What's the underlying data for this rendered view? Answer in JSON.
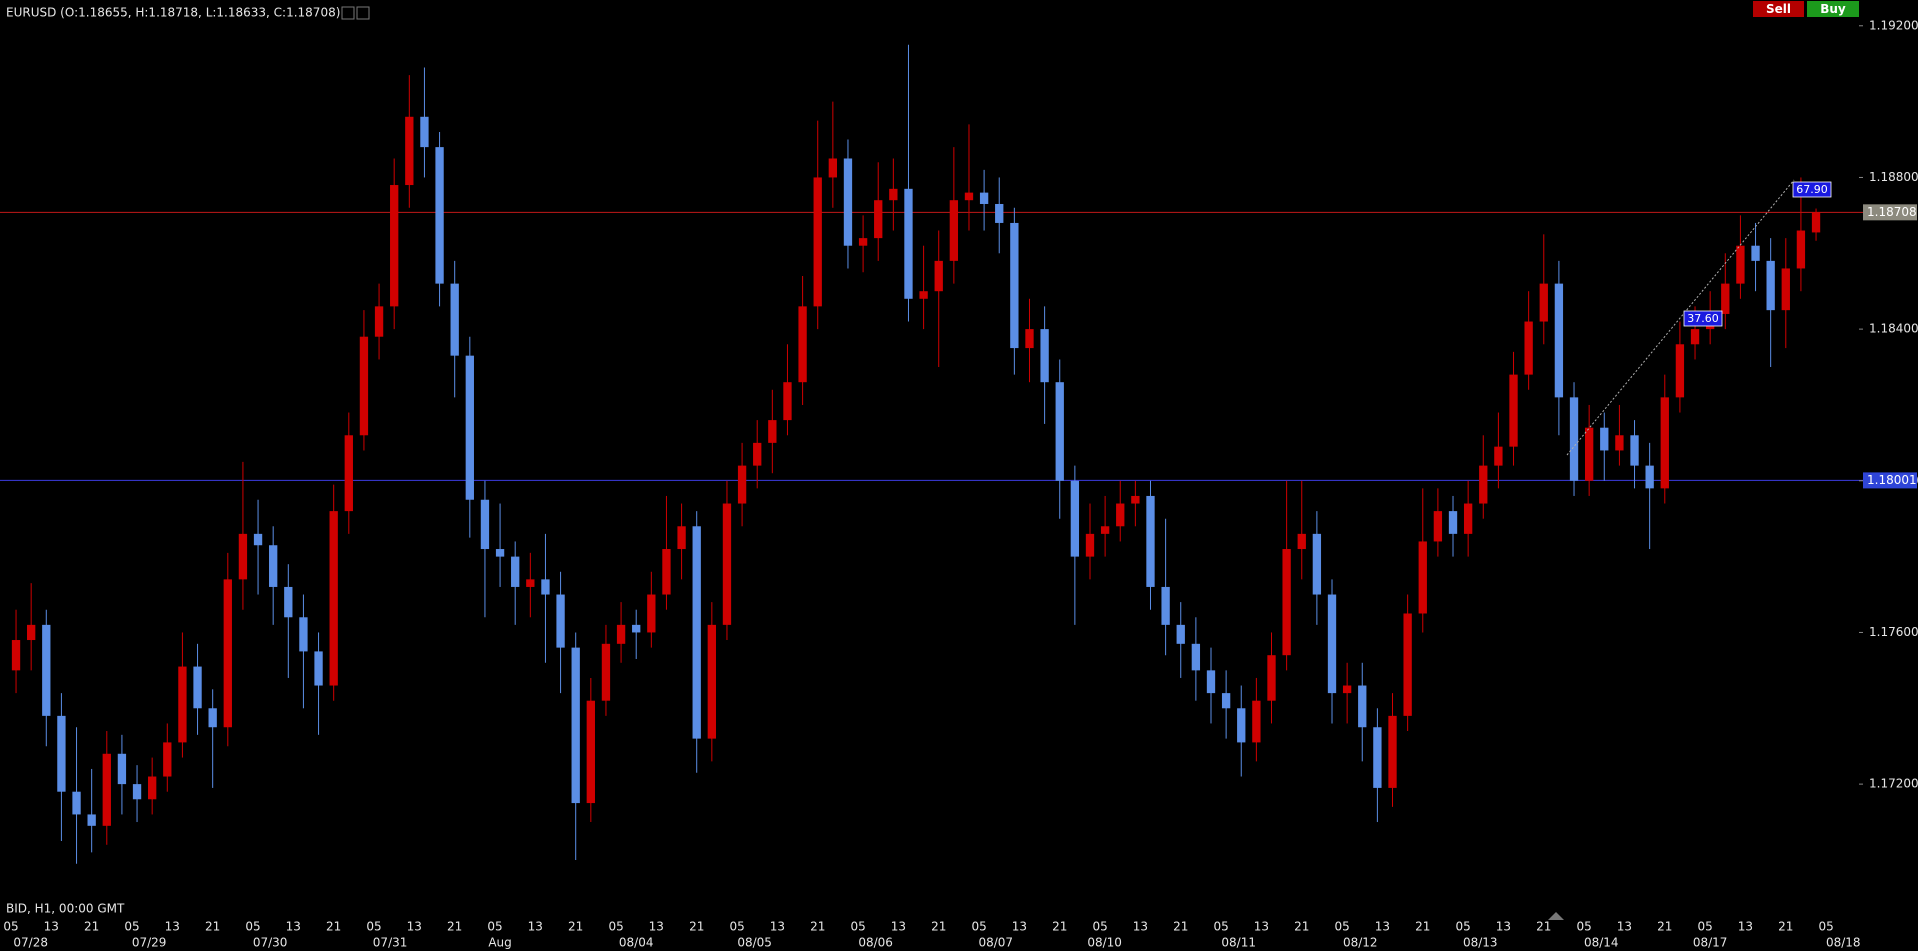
{
  "chart_data": {
    "type": "candlestick",
    "title": "EURUSD (O:1.18655, H:1.18718, L:1.18633, C:1.18708)",
    "footer_label": "BID, H1, 00:00 GMT",
    "buttons": [
      "Sell",
      "Buy"
    ],
    "up_color": "#d00000",
    "down_color": "#5b8ee6",
    "grid": false,
    "ylim": [
      1.16897,
      1.19268
    ],
    "yticks": [
      {
        "value": 1.192,
        "label": "1.19200"
      },
      {
        "value": 1.188,
        "label": "1.18800"
      },
      {
        "value": 1.184,
        "label": "1.18400"
      },
      {
        "value": 1.18,
        "label": "1.18000"
      },
      {
        "value": 1.176,
        "label": "1.17600"
      },
      {
        "value": 1.172,
        "label": "1.17200"
      }
    ],
    "xlim": [
      -1.06,
      121.84
    ],
    "xticks": [
      {
        "value": -0.33,
        "label": "05"
      },
      {
        "value": 2.33,
        "label": "13"
      },
      {
        "value": 5.0,
        "label": "21"
      },
      {
        "value": 7.67,
        "label": "05"
      },
      {
        "value": 10.33,
        "label": "13"
      },
      {
        "value": 13.0,
        "label": "21"
      },
      {
        "value": 15.67,
        "label": "05"
      },
      {
        "value": 18.33,
        "label": "13"
      },
      {
        "value": 21.0,
        "label": "21"
      },
      {
        "value": 23.67,
        "label": "05"
      },
      {
        "value": 26.33,
        "label": "13"
      },
      {
        "value": 29.0,
        "label": "21"
      },
      {
        "value": 31.67,
        "label": "05"
      },
      {
        "value": 34.33,
        "label": "13"
      },
      {
        "value": 37.0,
        "label": "21"
      },
      {
        "value": 39.67,
        "label": "05"
      },
      {
        "value": 42.33,
        "label": "13"
      },
      {
        "value": 45.0,
        "label": "21"
      },
      {
        "value": 47.67,
        "label": "05"
      },
      {
        "value": 50.33,
        "label": "13"
      },
      {
        "value": 53.0,
        "label": "21"
      },
      {
        "value": 55.67,
        "label": "05"
      },
      {
        "value": 58.33,
        "label": "13"
      },
      {
        "value": 61.0,
        "label": "21"
      },
      {
        "value": 63.67,
        "label": "05"
      },
      {
        "value": 66.33,
        "label": "13"
      },
      {
        "value": 69.0,
        "label": "21"
      },
      {
        "value": 71.67,
        "label": "05"
      },
      {
        "value": 74.33,
        "label": "13"
      },
      {
        "value": 77.0,
        "label": "21"
      },
      {
        "value": 79.67,
        "label": "05"
      },
      {
        "value": 82.33,
        "label": "13"
      },
      {
        "value": 85.0,
        "label": "21"
      },
      {
        "value": 87.67,
        "label": "05"
      },
      {
        "value": 90.33,
        "label": "13"
      },
      {
        "value": 93.0,
        "label": "21"
      },
      {
        "value": 95.67,
        "label": "05"
      },
      {
        "value": 98.33,
        "label": "13"
      },
      {
        "value": 101.0,
        "label": "21"
      },
      {
        "value": 103.67,
        "label": "05"
      },
      {
        "value": 106.33,
        "label": "13"
      },
      {
        "value": 109.0,
        "label": "21"
      },
      {
        "value": 111.67,
        "label": "05"
      },
      {
        "value": 114.33,
        "label": "13"
      },
      {
        "value": 117.0,
        "label": "21"
      },
      {
        "value": 119.67,
        "label": "05"
      }
    ],
    "date_ticks": [
      {
        "value": 0.97,
        "label": "07/28"
      },
      {
        "value": 8.8,
        "label": "07/29"
      },
      {
        "value": 16.8,
        "label": "07/30"
      },
      {
        "value": 24.73,
        "label": "07/31"
      },
      {
        "value": 32,
        "label": "Aug"
      },
      {
        "value": 41,
        "label": "08/04"
      },
      {
        "value": 48.83,
        "label": "08/05"
      },
      {
        "value": 56.83,
        "label": "08/06"
      },
      {
        "value": 64.77,
        "label": "08/07"
      },
      {
        "value": 71.97,
        "label": "08/10"
      },
      {
        "value": 80.83,
        "label": "08/11"
      },
      {
        "value": 88.87,
        "label": "08/12"
      },
      {
        "value": 96.8,
        "label": "08/13"
      },
      {
        "value": 104.8,
        "label": "08/14"
      },
      {
        "value": 112,
        "label": "08/17"
      },
      {
        "value": 120.8,
        "label": "08/18"
      }
    ],
    "price_lines": [
      {
        "value": 1.18708,
        "label": "1.18708",
        "color": "#c01818",
        "label_background": "#8c8a7e"
      },
      {
        "value": 1.18001,
        "label": "1.18001",
        "color": "#3b3be0",
        "label_background": "#2f45d8"
      }
    ],
    "annotations": [
      "67.90",
      "37.60"
    ],
    "ohlc": [
      [
        1.175,
        1.1766,
        1.1744,
        1.1758
      ],
      [
        1.1758,
        1.1773,
        1.175,
        1.1762
      ],
      [
        1.1762,
        1.1766,
        1.173,
        1.1738
      ],
      [
        1.1738,
        1.1744,
        1.1705,
        1.1718
      ],
      [
        1.1718,
        1.1735,
        1.1699,
        1.1712
      ],
      [
        1.1712,
        1.1724,
        1.1702,
        1.1709
      ],
      [
        1.1709,
        1.1734,
        1.1704,
        1.1728
      ],
      [
        1.1728,
        1.1733,
        1.1712,
        1.172
      ],
      [
        1.172,
        1.1725,
        1.171,
        1.1716
      ],
      [
        1.1716,
        1.1727,
        1.1712,
        1.1722
      ],
      [
        1.1722,
        1.1736,
        1.1718,
        1.1731
      ],
      [
        1.1731,
        1.176,
        1.1727,
        1.1751
      ],
      [
        1.1751,
        1.1757,
        1.1733,
        1.174
      ],
      [
        1.174,
        1.1745,
        1.1719,
        1.1735
      ],
      [
        1.1735,
        1.1781,
        1.173,
        1.1774
      ],
      [
        1.1774,
        1.1805,
        1.1766,
        1.1786
      ],
      [
        1.1786,
        1.1795,
        1.177,
        1.1783
      ],
      [
        1.1783,
        1.1788,
        1.1762,
        1.1772
      ],
      [
        1.1772,
        1.1778,
        1.1748,
        1.1764
      ],
      [
        1.1764,
        1.177,
        1.174,
        1.1755
      ],
      [
        1.1755,
        1.176,
        1.1733,
        1.1746
      ],
      [
        1.1746,
        1.1799,
        1.1742,
        1.1792
      ],
      [
        1.1792,
        1.1818,
        1.1786,
        1.1812
      ],
      [
        1.1812,
        1.1845,
        1.1808,
        1.1838
      ],
      [
        1.1838,
        1.1852,
        1.1832,
        1.1846
      ],
      [
        1.1846,
        1.1885,
        1.184,
        1.1878
      ],
      [
        1.1878,
        1.1907,
        1.1872,
        1.1896
      ],
      [
        1.1896,
        1.1909,
        1.188,
        1.1888
      ],
      [
        1.1888,
        1.1892,
        1.1846,
        1.1852
      ],
      [
        1.1852,
        1.1858,
        1.1822,
        1.1833
      ],
      [
        1.1833,
        1.1838,
        1.1785,
        1.1795
      ],
      [
        1.1795,
        1.18,
        1.1764,
        1.1782
      ],
      [
        1.1782,
        1.1794,
        1.1772,
        1.178
      ],
      [
        1.178,
        1.1784,
        1.1762,
        1.1772
      ],
      [
        1.1772,
        1.1781,
        1.1764,
        1.1774
      ],
      [
        1.1774,
        1.1786,
        1.1752,
        1.177
      ],
      [
        1.177,
        1.1776,
        1.1744,
        1.1756
      ],
      [
        1.1756,
        1.176,
        1.17,
        1.1715
      ],
      [
        1.1715,
        1.1748,
        1.171,
        1.1742
      ],
      [
        1.1742,
        1.1762,
        1.1738,
        1.1757
      ],
      [
        1.1757,
        1.1768,
        1.1752,
        1.1762
      ],
      [
        1.1762,
        1.1766,
        1.1753,
        1.176
      ],
      [
        1.176,
        1.1776,
        1.1756,
        1.177
      ],
      [
        1.177,
        1.1796,
        1.1766,
        1.1782
      ],
      [
        1.1782,
        1.1794,
        1.1774,
        1.1788
      ],
      [
        1.1788,
        1.1792,
        1.1723,
        1.1732
      ],
      [
        1.1732,
        1.1768,
        1.1726,
        1.1762
      ],
      [
        1.1762,
        1.18,
        1.1758,
        1.1794
      ],
      [
        1.1794,
        1.181,
        1.1788,
        1.1804
      ],
      [
        1.1804,
        1.1816,
        1.1798,
        1.181
      ],
      [
        1.181,
        1.1824,
        1.1802,
        1.1816
      ],
      [
        1.1816,
        1.1836,
        1.1812,
        1.1826
      ],
      [
        1.1826,
        1.1854,
        1.182,
        1.1846
      ],
      [
        1.1846,
        1.1895,
        1.184,
        1.188
      ],
      [
        1.188,
        1.19,
        1.1872,
        1.1885
      ],
      [
        1.1885,
        1.189,
        1.1856,
        1.1862
      ],
      [
        1.1862,
        1.187,
        1.1855,
        1.1864
      ],
      [
        1.1864,
        1.1884,
        1.1858,
        1.1874
      ],
      [
        1.1874,
        1.1885,
        1.1866,
        1.1877
      ],
      [
        1.1877,
        1.1915,
        1.1842,
        1.1848
      ],
      [
        1.1848,
        1.1862,
        1.184,
        1.185
      ],
      [
        1.185,
        1.1866,
        1.183,
        1.1858
      ],
      [
        1.1858,
        1.1888,
        1.1852,
        1.1874
      ],
      [
        1.1874,
        1.1894,
        1.1866,
        1.1876
      ],
      [
        1.1876,
        1.1882,
        1.1866,
        1.1873
      ],
      [
        1.1873,
        1.188,
        1.186,
        1.1868
      ],
      [
        1.1868,
        1.1872,
        1.1828,
        1.1835
      ],
      [
        1.1835,
        1.1848,
        1.1826,
        1.184
      ],
      [
        1.184,
        1.1846,
        1.1815,
        1.1826
      ],
      [
        1.1826,
        1.1832,
        1.179,
        1.18
      ],
      [
        1.18,
        1.1804,
        1.1762,
        1.178
      ],
      [
        1.178,
        1.1794,
        1.1774,
        1.1786
      ],
      [
        1.1786,
        1.1796,
        1.178,
        1.1788
      ],
      [
        1.1788,
        1.18,
        1.1784,
        1.1794
      ],
      [
        1.1794,
        1.18,
        1.1788,
        1.1796
      ],
      [
        1.1796,
        1.18,
        1.1766,
        1.1772
      ],
      [
        1.1772,
        1.179,
        1.1754,
        1.1762
      ],
      [
        1.1762,
        1.1768,
        1.1748,
        1.1757
      ],
      [
        1.1757,
        1.1764,
        1.1742,
        1.175
      ],
      [
        1.175,
        1.1756,
        1.1736,
        1.1744
      ],
      [
        1.1744,
        1.175,
        1.1732,
        1.174
      ],
      [
        1.174,
        1.1746,
        1.1722,
        1.1731
      ],
      [
        1.1731,
        1.1748,
        1.1726,
        1.1742
      ],
      [
        1.1742,
        1.176,
        1.1736,
        1.1754
      ],
      [
        1.1754,
        1.18,
        1.175,
        1.1782
      ],
      [
        1.1782,
        1.18,
        1.1774,
        1.1786
      ],
      [
        1.1786,
        1.1792,
        1.1762,
        1.177
      ],
      [
        1.177,
        1.1774,
        1.1736,
        1.1744
      ],
      [
        1.1744,
        1.1752,
        1.1736,
        1.1746
      ],
      [
        1.1746,
        1.1752,
        1.1726,
        1.1735
      ],
      [
        1.1735,
        1.174,
        1.171,
        1.1719
      ],
      [
        1.1719,
        1.1744,
        1.1714,
        1.1738
      ],
      [
        1.1738,
        1.177,
        1.1734,
        1.1765
      ],
      [
        1.1765,
        1.1798,
        1.176,
        1.1784
      ],
      [
        1.1784,
        1.1798,
        1.178,
        1.1792
      ],
      [
        1.1792,
        1.1796,
        1.178,
        1.1786
      ],
      [
        1.1786,
        1.18,
        1.178,
        1.1794
      ],
      [
        1.1794,
        1.1812,
        1.179,
        1.1804
      ],
      [
        1.1804,
        1.1818,
        1.1798,
        1.1809
      ],
      [
        1.1809,
        1.1834,
        1.1804,
        1.1828
      ],
      [
        1.1828,
        1.185,
        1.1824,
        1.1842
      ],
      [
        1.1842,
        1.1865,
        1.1836,
        1.1852
      ],
      [
        1.1852,
        1.1858,
        1.1812,
        1.1822
      ],
      [
        1.1822,
        1.1826,
        1.1796,
        1.18
      ],
      [
        1.18,
        1.182,
        1.1796,
        1.1814
      ],
      [
        1.1814,
        1.1818,
        1.18,
        1.1808
      ],
      [
        1.1808,
        1.182,
        1.1804,
        1.1812
      ],
      [
        1.1812,
        1.1816,
        1.1798,
        1.1804
      ],
      [
        1.1804,
        1.181,
        1.1782,
        1.1798
      ],
      [
        1.1798,
        1.1828,
        1.1794,
        1.1822
      ],
      [
        1.1822,
        1.1842,
        1.1818,
        1.1836
      ],
      [
        1.1836,
        1.1846,
        1.1832,
        1.184
      ],
      [
        1.184,
        1.185,
        1.1836,
        1.1844
      ],
      [
        1.1844,
        1.186,
        1.184,
        1.1852
      ],
      [
        1.1852,
        1.187,
        1.1848,
        1.1862
      ],
      [
        1.1862,
        1.1868,
        1.185,
        1.1858
      ],
      [
        1.1858,
        1.1864,
        1.183,
        1.1845
      ],
      [
        1.1845,
        1.1864,
        1.1835,
        1.1856
      ],
      [
        1.1856,
        1.188,
        1.185,
        1.1866
      ],
      [
        1.18655,
        1.18718,
        1.18633,
        1.18708
      ]
    ]
  }
}
